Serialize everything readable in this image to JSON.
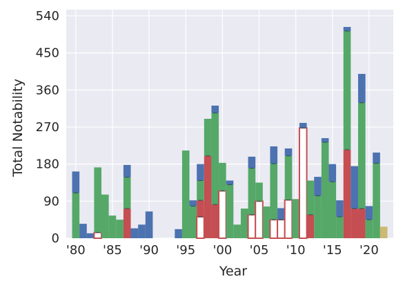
{
  "chart_data": {
    "type": "bar",
    "stacked": true,
    "xlabel": "Year",
    "ylabel": "Total Notability",
    "ylim": [
      0,
      555
    ],
    "xlim": [
      1978.7,
      2023.3
    ],
    "yticks": [
      0,
      90,
      180,
      270,
      360,
      450,
      540
    ],
    "xticks": [
      {
        "value": 1980,
        "label": "'80"
      },
      {
        "value": 1985,
        "label": "'85"
      },
      {
        "value": 1990,
        "label": "'90"
      },
      {
        "value": 1995,
        "label": "'95"
      },
      {
        "value": 2000,
        "label": "'00"
      },
      {
        "value": 2005,
        "label": "'05"
      },
      {
        "value": 2010,
        "label": "'10"
      },
      {
        "value": 2015,
        "label": "'15"
      },
      {
        "value": 2020,
        "label": "'20"
      }
    ],
    "grid": true,
    "background": "#EAEAF2",
    "colors": {
      "red": "#C44E52",
      "green": "#55A868",
      "blue": "#4C72B0",
      "yellow": "#CCB974",
      "outline": "#C44E52",
      "divider": "#2F4F4F"
    },
    "bin_width": 1,
    "bars": [
      {
        "x": 1980,
        "segments": [
          {
            "color": "green",
            "value": 110
          },
          {
            "color": "blue",
            "value": 52
          }
        ]
      },
      {
        "x": 1981,
        "segments": [
          {
            "color": "blue",
            "value": 35
          }
        ]
      },
      {
        "x": 1982,
        "segments": [
          {
            "color": "blue",
            "value": 12
          }
        ]
      },
      {
        "x": 1983,
        "segments": [
          {
            "color": "outline",
            "value": 14
          },
          {
            "color": "green",
            "value": 158
          }
        ]
      },
      {
        "x": 1984,
        "segments": [
          {
            "color": "green",
            "value": 106
          }
        ]
      },
      {
        "x": 1985,
        "segments": [
          {
            "color": "green",
            "value": 55
          }
        ]
      },
      {
        "x": 1986,
        "segments": [
          {
            "color": "green",
            "value": 45
          }
        ]
      },
      {
        "x": 1987,
        "segments": [
          {
            "color": "red",
            "value": 72
          },
          {
            "color": "green",
            "value": 76
          },
          {
            "color": "blue",
            "value": 30
          }
        ]
      },
      {
        "x": 1988,
        "segments": [
          {
            "color": "blue",
            "value": 24
          }
        ]
      },
      {
        "x": 1989,
        "segments": [
          {
            "color": "blue",
            "value": 33
          }
        ]
      },
      {
        "x": 1990,
        "segments": [
          {
            "color": "blue",
            "value": 65
          }
        ]
      },
      {
        "x": 1994,
        "segments": [
          {
            "color": "blue",
            "value": 22
          }
        ]
      },
      {
        "x": 1995,
        "segments": [
          {
            "color": "green",
            "value": 213
          }
        ]
      },
      {
        "x": 1996,
        "segments": [
          {
            "color": "green",
            "value": 78
          },
          {
            "color": "blue",
            "value": 14
          }
        ]
      },
      {
        "x": 1997,
        "segments": [
          {
            "color": "outline",
            "value": 52
          },
          {
            "color": "red",
            "value": 40
          },
          {
            "color": "green",
            "value": 48
          },
          {
            "color": "blue",
            "value": 40
          }
        ]
      },
      {
        "x": 1998,
        "segments": [
          {
            "color": "red",
            "value": 200
          },
          {
            "color": "green",
            "value": 90
          }
        ]
      },
      {
        "x": 1999,
        "segments": [
          {
            "color": "red",
            "value": 82
          },
          {
            "color": "green",
            "value": 222
          },
          {
            "color": "blue",
            "value": 18
          }
        ]
      },
      {
        "x": 2000,
        "segments": [
          {
            "color": "outline",
            "value": 115
          },
          {
            "color": "green",
            "value": 68
          }
        ]
      },
      {
        "x": 2001,
        "segments": [
          {
            "color": "green",
            "value": 130
          },
          {
            "color": "blue",
            "value": 10
          }
        ]
      },
      {
        "x": 2002,
        "segments": [
          {
            "color": "green",
            "value": 33
          }
        ]
      },
      {
        "x": 2003,
        "segments": [
          {
            "color": "green",
            "value": 72
          }
        ]
      },
      {
        "x": 2004,
        "segments": [
          {
            "color": "outline",
            "value": 57
          },
          {
            "color": "green",
            "value": 113
          },
          {
            "color": "blue",
            "value": 28
          }
        ]
      },
      {
        "x": 2005,
        "segments": [
          {
            "color": "outline",
            "value": 90
          },
          {
            "color": "green",
            "value": 45
          }
        ]
      },
      {
        "x": 2006,
        "segments": [
          {
            "color": "green",
            "value": 77
          }
        ]
      },
      {
        "x": 2007,
        "segments": [
          {
            "color": "outline",
            "value": 45
          },
          {
            "color": "green",
            "value": 136
          },
          {
            "color": "blue",
            "value": 42
          }
        ]
      },
      {
        "x": 2008,
        "segments": [
          {
            "color": "outline",
            "value": 45
          },
          {
            "color": "blue",
            "value": 28
          }
        ]
      },
      {
        "x": 2009,
        "segments": [
          {
            "color": "outline",
            "value": 93
          },
          {
            "color": "green",
            "value": 107
          },
          {
            "color": "blue",
            "value": 18
          }
        ]
      },
      {
        "x": 2010,
        "segments": [
          {
            "color": "green",
            "value": 95
          }
        ]
      },
      {
        "x": 2011,
        "segments": [
          {
            "color": "outline",
            "value": 268
          },
          {
            "color": "blue",
            "value": 12
          }
        ]
      },
      {
        "x": 2012,
        "segments": [
          {
            "color": "red",
            "value": 57
          },
          {
            "color": "green",
            "value": 83
          }
        ]
      },
      {
        "x": 2013,
        "segments": [
          {
            "color": "green",
            "value": 103
          },
          {
            "color": "blue",
            "value": 46
          }
        ]
      },
      {
        "x": 2014,
        "segments": [
          {
            "color": "green",
            "value": 233
          },
          {
            "color": "blue",
            "value": 10
          }
        ]
      },
      {
        "x": 2015,
        "segments": [
          {
            "color": "green",
            "value": 137
          },
          {
            "color": "blue",
            "value": 43
          }
        ]
      },
      {
        "x": 2016,
        "segments": [
          {
            "color": "green",
            "value": 52
          },
          {
            "color": "blue",
            "value": 40
          }
        ]
      },
      {
        "x": 2017,
        "segments": [
          {
            "color": "red",
            "value": 215
          },
          {
            "color": "green",
            "value": 288
          },
          {
            "color": "blue",
            "value": 10
          }
        ]
      },
      {
        "x": 2018,
        "segments": [
          {
            "color": "red",
            "value": 72
          },
          {
            "color": "blue",
            "value": 103
          }
        ]
      },
      {
        "x": 2019,
        "segments": [
          {
            "color": "red",
            "value": 72
          },
          {
            "color": "green",
            "value": 257
          },
          {
            "color": "blue",
            "value": 70
          }
        ]
      },
      {
        "x": 2020,
        "segments": [
          {
            "color": "green",
            "value": 45
          },
          {
            "color": "blue",
            "value": 33
          }
        ]
      },
      {
        "x": 2021,
        "segments": [
          {
            "color": "green",
            "value": 182
          },
          {
            "color": "blue",
            "value": 26
          }
        ]
      },
      {
        "x": 2022,
        "segments": [
          {
            "color": "yellow",
            "value": 28
          }
        ]
      }
    ]
  }
}
